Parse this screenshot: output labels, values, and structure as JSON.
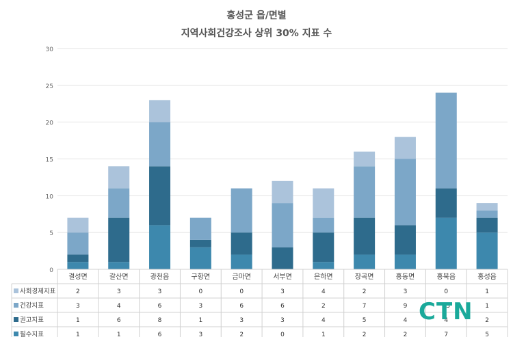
{
  "chart_data": {
    "type": "bar",
    "stacked": true,
    "title": "홍성군 읍/면별",
    "subtitle": "지역사회건강조사 상위 30% 지표 수",
    "categories": [
      "결성면",
      "갈산면",
      "광천읍",
      "구항면",
      "금마면",
      "서부면",
      "은하면",
      "장곡면",
      "홍동면",
      "홍북읍",
      "홍성읍"
    ],
    "ylim": [
      0,
      30
    ],
    "yticks": [
      0,
      5,
      10,
      15,
      20,
      25,
      30
    ],
    "grid": true,
    "legend": "data-table",
    "series": [
      {
        "name": "필수지표",
        "color": "#3d88ad",
        "values": [
          1,
          1,
          6,
          3,
          2,
          0,
          1,
          2,
          2,
          7,
          5
        ]
      },
      {
        "name": "권고지표",
        "color": "#2e6b8c",
        "values": [
          1,
          6,
          8,
          1,
          3,
          3,
          4,
          5,
          4,
          4,
          2
        ]
      },
      {
        "name": "건강지표",
        "color": "#7ca7c8",
        "values": [
          3,
          4,
          6,
          3,
          6,
          6,
          2,
          7,
          9,
          13,
          1
        ]
      },
      {
        "name": "사회경제지표",
        "color": "#abc3db",
        "values": [
          2,
          3,
          3,
          0,
          0,
          3,
          4,
          2,
          3,
          0,
          1
        ]
      }
    ]
  },
  "logo_text": "CTN"
}
